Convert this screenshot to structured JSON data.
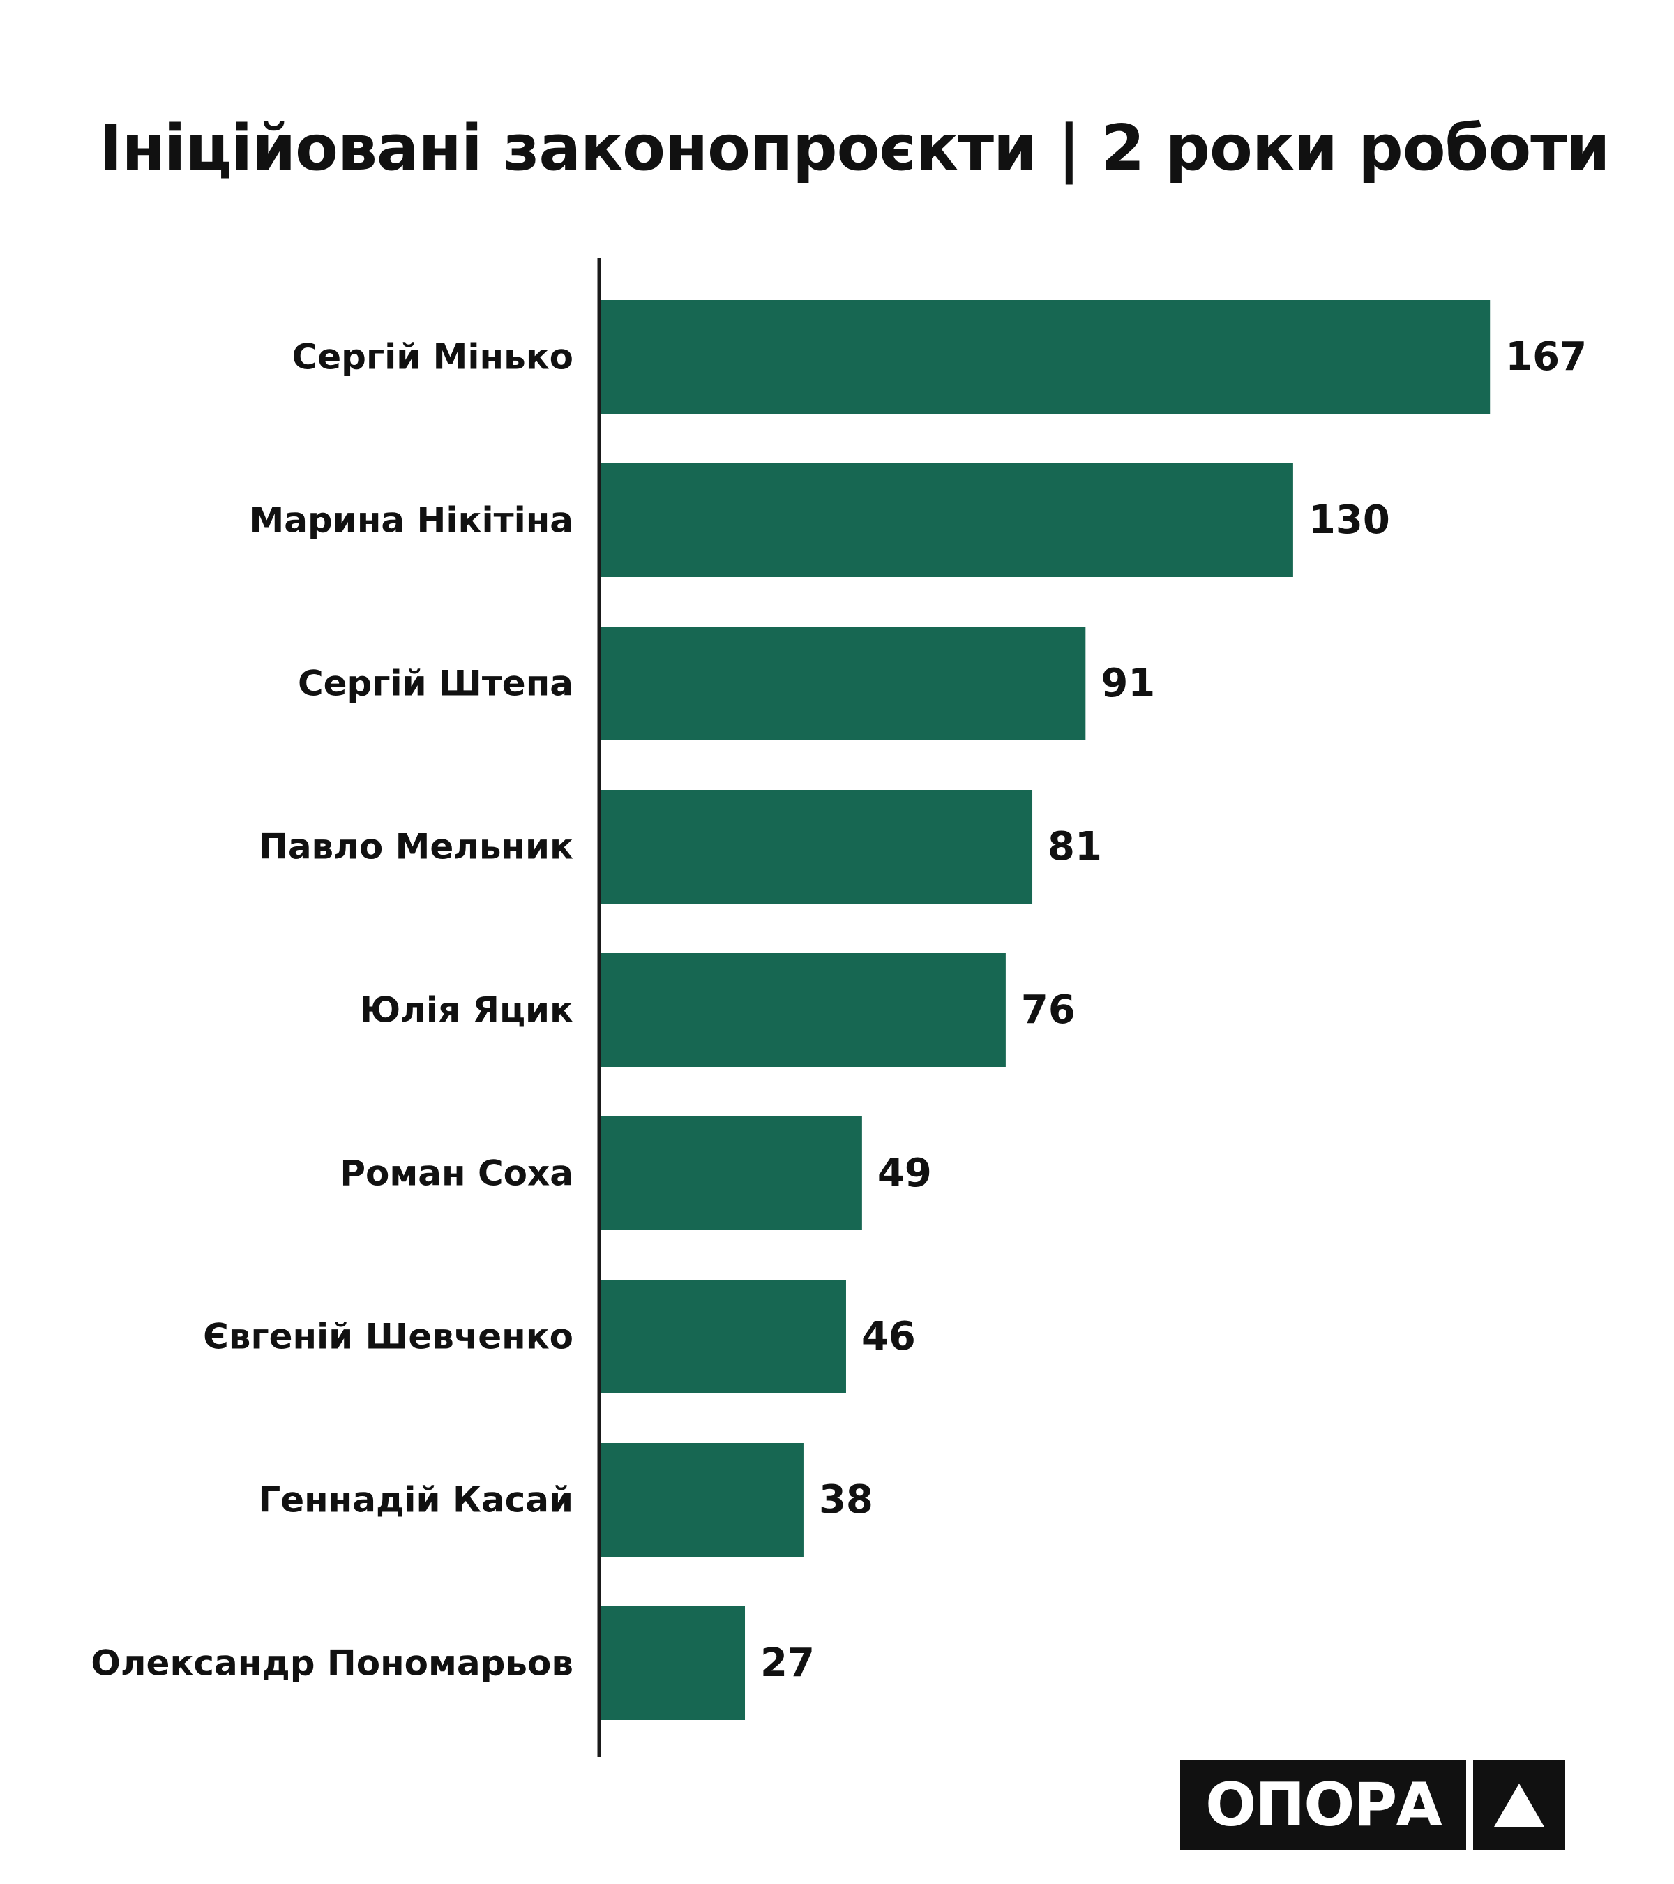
{
  "title": "Ініційовані законопроєкти | 2 роки роботи",
  "logo": {
    "text": "ОПОРА",
    "mark_icon": "triangle-icon"
  },
  "colors": {
    "bar": "#176752",
    "axis": "#1a1a1a",
    "text": "#111111"
  },
  "chart_data": {
    "type": "bar",
    "orientation": "horizontal",
    "title": "Ініційовані законопроєкти | 2 роки роботи",
    "categories": [
      "Сергій Мінько",
      "Марина Нікітіна",
      "Сергій Штепа",
      "Павло Мельник",
      "Юлія Яцик",
      "Роман Соха",
      "Євгеній Шевченко",
      "Геннадій Касай",
      "Олександр Пономарьов"
    ],
    "values": [
      167,
      130,
      91,
      81,
      76,
      49,
      46,
      38,
      27
    ],
    "xlabel": "",
    "ylabel": "",
    "grid": false,
    "legend": "none",
    "data_labels": true
  }
}
